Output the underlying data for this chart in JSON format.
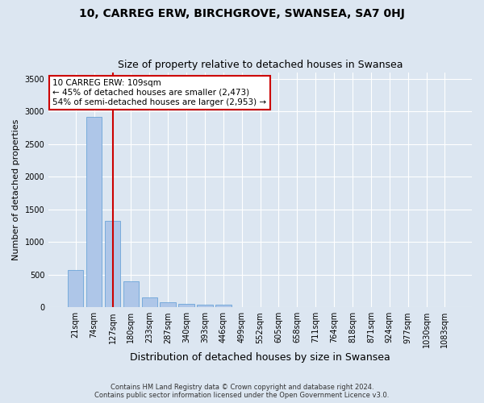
{
  "title": "10, CARREG ERW, BIRCHGROVE, SWANSEA, SA7 0HJ",
  "subtitle": "Size of property relative to detached houses in Swansea",
  "xlabel": "Distribution of detached houses by size in Swansea",
  "ylabel": "Number of detached properties",
  "footer_line1": "Contains HM Land Registry data © Crown copyright and database right 2024.",
  "footer_line2": "Contains public sector information licensed under the Open Government Licence v3.0.",
  "bin_labels": [
    "21sqm",
    "74sqm",
    "127sqm",
    "180sqm",
    "233sqm",
    "287sqm",
    "340sqm",
    "393sqm",
    "446sqm",
    "499sqm",
    "552sqm",
    "605sqm",
    "658sqm",
    "711sqm",
    "764sqm",
    "818sqm",
    "871sqm",
    "924sqm",
    "977sqm",
    "1030sqm",
    "1083sqm"
  ],
  "bar_values": [
    570,
    2920,
    1320,
    405,
    150,
    75,
    55,
    45,
    35,
    0,
    0,
    0,
    0,
    0,
    0,
    0,
    0,
    0,
    0,
    0,
    0
  ],
  "bar_color": "#aec6e8",
  "bar_edgecolor": "#5b9bd5",
  "vline_color": "#cc0000",
  "vline_x": 2.0,
  "annotation_text": "10 CARREG ERW: 109sqm\n← 45% of detached houses are smaller (2,473)\n54% of semi-detached houses are larger (2,953) →",
  "annotation_box_color": "#ffffff",
  "annotation_box_edgecolor": "#cc0000",
  "ylim": [
    0,
    3600
  ],
  "yticks": [
    0,
    500,
    1000,
    1500,
    2000,
    2500,
    3000,
    3500
  ],
  "background_color": "#dce6f1",
  "grid_color": "#ffffff",
  "title_fontsize": 10,
  "subtitle_fontsize": 9,
  "ylabel_fontsize": 8,
  "xlabel_fontsize": 9,
  "tick_fontsize": 7,
  "footer_fontsize": 6,
  "annotation_fontsize": 7.5
}
